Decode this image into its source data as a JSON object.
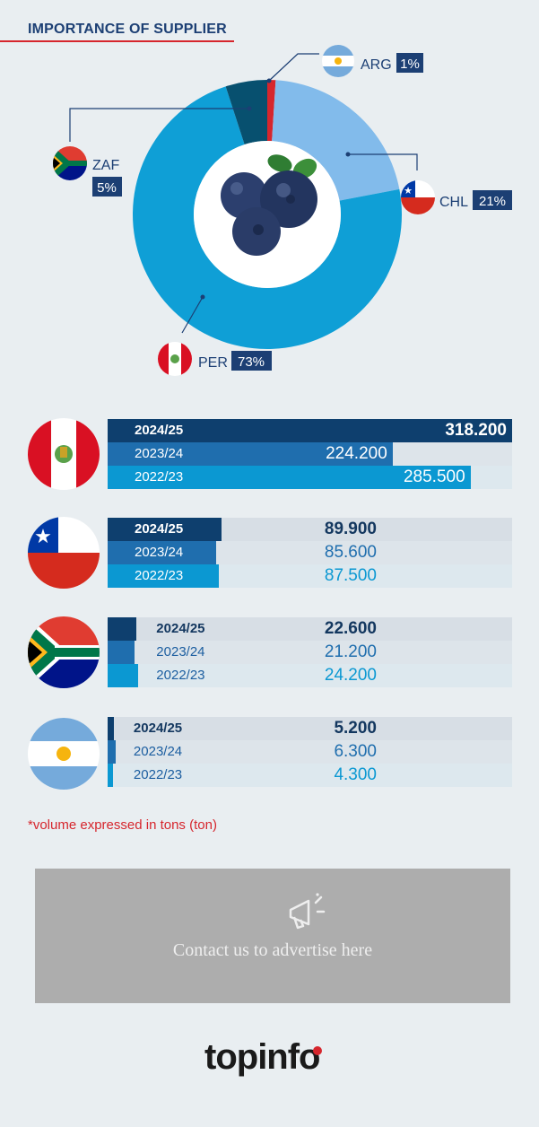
{
  "page_title": "IMPORTANCE OF SUPPLIER",
  "chart_data": [
    {
      "type": "pie",
      "title": "IMPORTANCE OF SUPPLIER",
      "categories": [
        "ARG",
        "CHL",
        "PER",
        "ZAF"
      ],
      "values": [
        1,
        21,
        73,
        5
      ],
      "value_labels": [
        "1%",
        "21%",
        "73%",
        "5%"
      ],
      "colors": [
        "#d6262d",
        "#82bbeb",
        "#0f9fd6",
        "#07506f"
      ]
    },
    {
      "type": "bar",
      "orientation": "horizontal",
      "categories": [
        "PER",
        "CHL",
        "ZAF",
        "ARG"
      ],
      "series": [
        {
          "name": "2024/25",
          "values": [
            318.2,
            89.9,
            22.6,
            5.2
          ],
          "labels": [
            "318.200",
            "89.900",
            "22.600",
            "5.200"
          ],
          "color": "#0e3f6e"
        },
        {
          "name": "2023/24",
          "values": [
            224.2,
            85.6,
            21.2,
            6.3
          ],
          "labels": [
            "224.200",
            "85.600",
            "21.200",
            "6.300"
          ],
          "color": "#1f6eae"
        },
        {
          "name": "2022/23",
          "values": [
            285.5,
            87.5,
            24.2,
            4.3
          ],
          "labels": [
            "285.500",
            "87.500",
            "24.200",
            "4.300"
          ],
          "color": "#0b98d2"
        }
      ],
      "xlim": [
        0,
        318.2
      ]
    }
  ],
  "footnote": "*volume expressed in tons (ton)",
  "ad": {
    "text": "Contact us to advertise here",
    "icon": "megaphone-icon"
  },
  "logo": {
    "text": "topinfo"
  }
}
